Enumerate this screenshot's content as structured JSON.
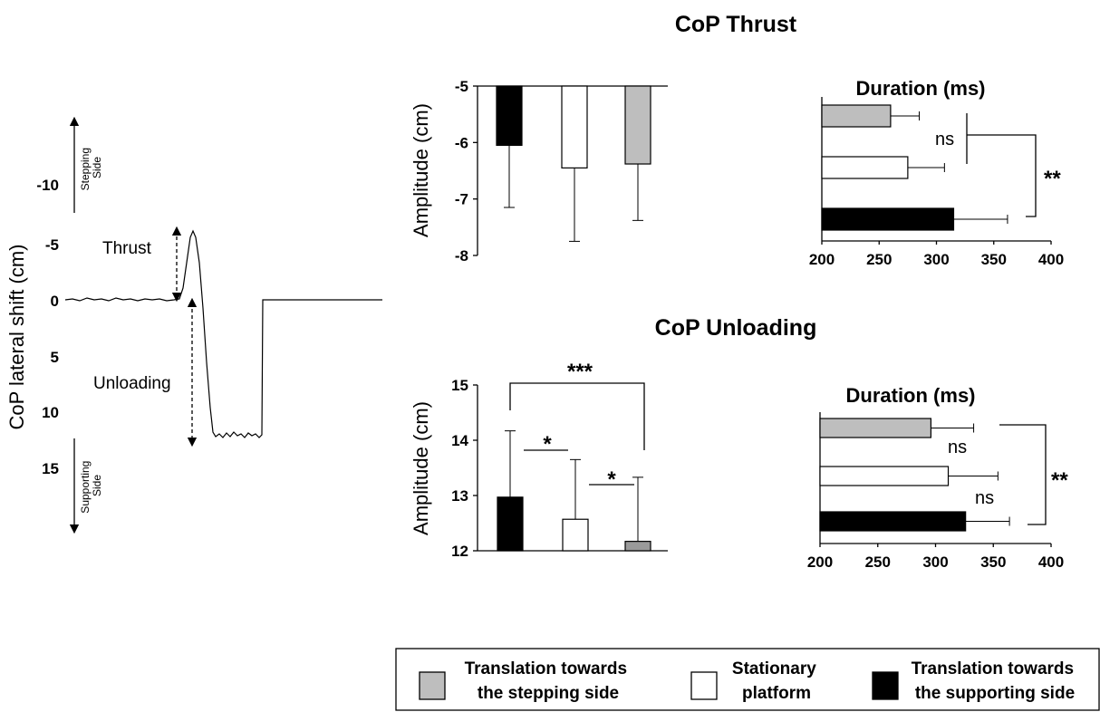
{
  "colors": {
    "gray": "#bebebe",
    "white": "#ffffff",
    "black": "#000000",
    "axis": "#000000"
  },
  "trace": {
    "ylabel": "CoP lateral shift (cm)",
    "ticks": [
      "-10",
      "-5",
      "0",
      "5",
      "10",
      "15"
    ],
    "thrust_label": "Thrust",
    "unloading_label": "Unloading",
    "stepping_side": [
      "Stepping",
      "Side"
    ],
    "supporting_side": [
      "Supporting",
      "Side"
    ]
  },
  "titles": {
    "thrust": "CoP Thrust",
    "unloading": "CoP Unloading"
  },
  "legend": {
    "items": [
      {
        "key": "gray",
        "lines": [
          "Translation towards",
          "the stepping side"
        ]
      },
      {
        "key": "white",
        "lines": [
          "Stationary",
          "platform"
        ]
      },
      {
        "key": "black",
        "lines": [
          "Translation towards",
          "the supporting side"
        ]
      }
    ]
  },
  "chart_data": [
    {
      "type": "bar",
      "panel": "thrust-amplitude",
      "ylabel": "Amplitude (cm)",
      "ylim": [
        -8,
        -5
      ],
      "yticks": [
        "-5",
        "-6",
        "-7",
        "-8"
      ],
      "series": [
        {
          "key": "black",
          "value": -6.05,
          "error": 1.1
        },
        {
          "key": "white",
          "value": -6.45,
          "error": 1.3
        },
        {
          "key": "gray",
          "value": -6.38,
          "error": 1.0
        }
      ]
    },
    {
      "type": "bar",
      "panel": "thrust-duration",
      "orientation": "horizontal",
      "title": "Duration (ms)",
      "xlim": [
        200,
        400
      ],
      "xticks": [
        "200",
        "250",
        "300",
        "350",
        "400"
      ],
      "series": [
        {
          "key": "gray",
          "value": 260,
          "error": 25
        },
        {
          "key": "white",
          "value": 275,
          "error": 32
        },
        {
          "key": "black",
          "value": 315,
          "error": 47
        }
      ],
      "annotations": {
        "ns": "ns",
        "sig": "**"
      }
    },
    {
      "type": "bar",
      "panel": "unloading-amplitude",
      "ylabel": "Amplitude (cm)",
      "ylim": [
        12,
        15
      ],
      "yticks": [
        "15",
        "14",
        "13",
        "12"
      ],
      "series": [
        {
          "key": "black",
          "value": 12.97,
          "error": 1.2
        },
        {
          "key": "white",
          "value": 12.57,
          "error": 1.08
        },
        {
          "key": "gray",
          "value": 12.17,
          "error": 1.16,
          "fill": "#9a9a9a"
        }
      ],
      "annotations": {
        "outer": "***",
        "left": "*",
        "right": "*"
      }
    },
    {
      "type": "bar",
      "panel": "unloading-duration",
      "orientation": "horizontal",
      "title": "Duration (ms)",
      "xlim": [
        200,
        400
      ],
      "xticks": [
        "200",
        "250",
        "300",
        "350",
        "400"
      ],
      "series": [
        {
          "key": "gray",
          "value": 296,
          "error": 37
        },
        {
          "key": "white",
          "value": 311,
          "error": 43
        },
        {
          "key": "black",
          "value": 326,
          "error": 38
        }
      ],
      "annotations": {
        "ns_top": "ns",
        "ns_bottom": "ns",
        "sig": "**"
      }
    }
  ]
}
